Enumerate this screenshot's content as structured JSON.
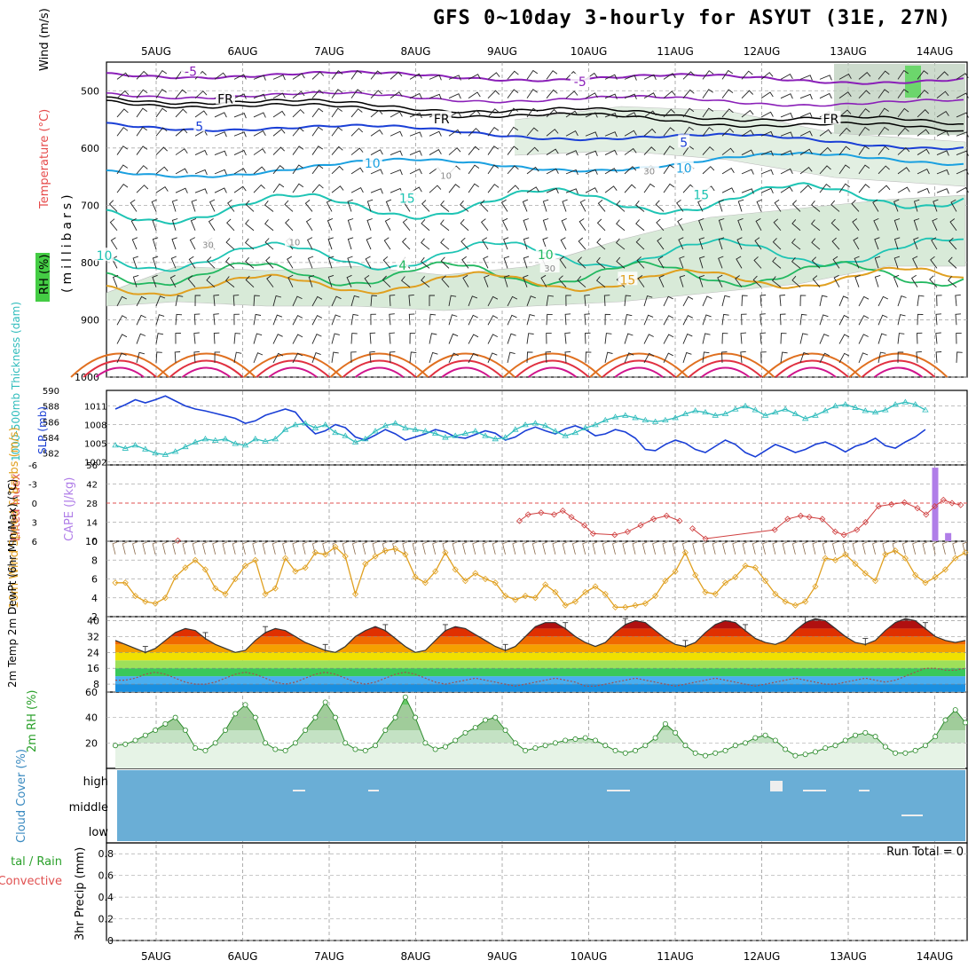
{
  "title": "GFS 0~10day 3-hourly for ASYUT (31E, 27N)",
  "dates": [
    "5AUG",
    "6AUG",
    "7AUG",
    "8AUG",
    "9AUG",
    "10AUG",
    "11AUG",
    "12AUG",
    "13AUG",
    "14AUG"
  ],
  "colors": {
    "purple": "#8a1fb8",
    "black": "#000000",
    "blue": "#1a3fd6",
    "sky": "#1aa0e0",
    "teal": "#1ec4b4",
    "green": "#22b860",
    "orange": "#e0a020",
    "dark_orange": "#e07020",
    "red": "#e03040",
    "magenta": "#d0148c",
    "cloud": "#6aaed6",
    "rh_green": "#5ac85a"
  },
  "chart_data": [
    {
      "id": "upper-air",
      "type": "contour",
      "ylabel": "(millibars)",
      "side_labels": [
        "Wind (m/s)",
        "Temperature (°C)",
        "RH (%)"
      ],
      "yticks": [
        500,
        600,
        700,
        800,
        900,
        1000
      ],
      "ylim": [
        450,
        1000
      ],
      "contour_labels": [
        {
          "text": "-5",
          "day": 1.4,
          "p": 466,
          "color": "purple"
        },
        {
          "text": "-5",
          "day": 5.9,
          "p": 484,
          "color": "purple"
        },
        {
          "text": "FR",
          "day": 1.8,
          "p": 514,
          "color": "black"
        },
        {
          "text": "FR",
          "day": 4.3,
          "p": 549,
          "color": "black"
        },
        {
          "text": "FR",
          "day": 8.8,
          "p": 549,
          "color": "black"
        },
        {
          "text": "5",
          "day": 1.5,
          "p": 562,
          "color": "blue"
        },
        {
          "text": "5",
          "day": 7.1,
          "p": 590,
          "color": "blue"
        },
        {
          "text": "10",
          "day": 3.5,
          "p": 627,
          "color": "sky"
        },
        {
          "text": "10",
          "day": 7.1,
          "p": 635,
          "color": "sky"
        },
        {
          "text": "15",
          "day": 3.9,
          "p": 688,
          "color": "teal"
        },
        {
          "text": "15",
          "day": 7.3,
          "p": 682,
          "color": "teal"
        },
        {
          "text": "10",
          "day": 0.4,
          "p": 788,
          "color": "teal"
        },
        {
          "text": "10",
          "day": 5.5,
          "p": 786,
          "color": "green"
        },
        {
          "text": "4",
          "day": 3.85,
          "p": 805,
          "color": "green"
        },
        {
          "text": "15",
          "day": 6.45,
          "p": 830,
          "color": "orange"
        },
        {
          "text": "30",
          "day": 1.6,
          "p": 767,
          "color": "gray"
        },
        {
          "text": "10",
          "day": 2.6,
          "p": 762,
          "color": "gray"
        },
        {
          "text": "10",
          "day": 4.35,
          "p": 646,
          "color": "gray"
        },
        {
          "text": "30",
          "day": 6.7,
          "p": 638,
          "color": "gray"
        },
        {
          "text": "30",
          "day": 5.55,
          "p": 808,
          "color": "gray"
        }
      ]
    },
    {
      "id": "thickness-slp",
      "type": "line",
      "ylabel_left": "1000-500mb Thickness (dam)",
      "ylabel_right": "SLP (mb)",
      "left_ticks": [
        590,
        588,
        586,
        584,
        582
      ],
      "right_ticks": [
        1011,
        1008,
        1005,
        1002
      ],
      "left_lim": [
        580.5,
        590
      ],
      "right_lim": [
        1001.5,
        1013.5
      ],
      "slp": [
        1010.5,
        1011.2,
        1012.0,
        1011.5,
        1012.0,
        1012.6,
        1011.8,
        1011.0,
        1010.5,
        1010.2,
        1009.8,
        1009.4,
        1009.0,
        1008.2,
        1008.6,
        1009.5,
        1010.0,
        1010.5,
        1010.0,
        1008.0,
        1006.5,
        1007.0,
        1008.0,
        1007.5,
        1006.0,
        1005.5,
        1006.3,
        1007.2,
        1006.5,
        1005.5,
        1006.0,
        1006.5,
        1007.2,
        1006.8,
        1006.0,
        1005.8,
        1006.4,
        1007.0,
        1006.6,
        1005.5,
        1006.0,
        1007.0,
        1007.6,
        1007.0,
        1006.5,
        1007.3,
        1007.8,
        1007.2,
        1006.2,
        1006.5,
        1007.2,
        1006.8,
        1005.8,
        1004.0,
        1003.8,
        1004.8,
        1005.5,
        1005.0,
        1004.0,
        1003.5,
        1004.5,
        1005.5,
        1004.8,
        1003.5,
        1002.8,
        1003.8,
        1004.8,
        1004.2,
        1003.5,
        1004.0,
        1004.8,
        1005.2,
        1004.5,
        1003.6,
        1004.5,
        1005.0,
        1005.8,
        1004.6,
        1004.2,
        1005.2,
        1006.0,
        1007.2
      ],
      "thickness": [
        583.0,
        582.6,
        583.0,
        582.5,
        582.0,
        581.8,
        582.2,
        582.8,
        583.4,
        583.8,
        583.6,
        583.8,
        583.2,
        583.0,
        583.8,
        583.5,
        583.8,
        585.0,
        585.6,
        585.8,
        585.2,
        585.6,
        584.6,
        584.2,
        583.4,
        583.8,
        584.8,
        585.5,
        585.8,
        585.2,
        585.0,
        584.8,
        584.5,
        584.0,
        584.2,
        584.5,
        584.8,
        584.2,
        583.8,
        584.0,
        585.0,
        585.6,
        585.8,
        585.5,
        584.8,
        584.2,
        584.6,
        585.2,
        585.6,
        586.2,
        586.6,
        586.8,
        586.5,
        586.2,
        586.0,
        586.2,
        586.5,
        587.0,
        587.4,
        587.2,
        586.8,
        587.0,
        587.6,
        588.0,
        587.5,
        586.8,
        587.2,
        587.6,
        587.0,
        586.4,
        586.8,
        587.4,
        588.0,
        588.2,
        587.8,
        587.4,
        587.2,
        587.5,
        588.2,
        588.5,
        588.2,
        587.5
      ]
    },
    {
      "id": "cape-li",
      "type": "line+bar",
      "ylabel_left": "Lifted Index",
      "ylabel_right": "CAPE (J/kg)",
      "left_ticks": [
        "-6",
        "-3",
        "0",
        "3",
        "6"
      ],
      "right_ticks": [
        56,
        42,
        28,
        14,
        0
      ],
      "cape_lim": [
        0,
        56
      ],
      "cape_bars": [
        {
          "day": 10.0,
          "value": 54
        },
        {
          "day": 10.15,
          "value": 6
        }
      ],
      "li_points": [
        {
          "day": 1.25,
          "li": 5.9
        },
        {
          "day": 5.2,
          "li": 2.8
        },
        {
          "day": 5.3,
          "li": 1.8
        },
        {
          "day": 5.45,
          "li": 1.5
        },
        {
          "day": 5.6,
          "li": 1.8
        },
        {
          "day": 5.7,
          "li": 1.2
        },
        {
          "day": 5.8,
          "li": 2.2
        },
        {
          "day": 5.95,
          "li": 3.5
        },
        {
          "day": 6.05,
          "li": 4.8
        },
        {
          "day": 6.3,
          "li": 5.0
        },
        {
          "day": 6.45,
          "li": 4.5
        },
        {
          "day": 6.6,
          "li": 3.5
        },
        {
          "day": 6.75,
          "li": 2.5
        },
        {
          "day": 6.9,
          "li": 2.0
        },
        {
          "day": 7.05,
          "li": 2.8
        },
        {
          "day": 7.2,
          "li": 4.0
        },
        {
          "day": 7.35,
          "li": 5.6
        },
        {
          "day": 8.15,
          "li": 4.2
        },
        {
          "day": 8.3,
          "li": 2.5
        },
        {
          "day": 8.45,
          "li": 2.0
        },
        {
          "day": 8.55,
          "li": 2.2
        },
        {
          "day": 8.7,
          "li": 2.5
        },
        {
          "day": 8.85,
          "li": 4.5
        },
        {
          "day": 8.95,
          "li": 5.0
        },
        {
          "day": 9.1,
          "li": 4.2
        },
        {
          "day": 9.2,
          "li": 3.0
        },
        {
          "day": 9.35,
          "li": 0.5
        },
        {
          "day": 9.5,
          "li": 0.2
        },
        {
          "day": 9.65,
          "li": -0.1
        },
        {
          "day": 9.8,
          "li": 0.8
        },
        {
          "day": 9.9,
          "li": 1.8
        },
        {
          "day": 10.0,
          "li": 0.5
        },
        {
          "day": 10.1,
          "li": -0.5
        },
        {
          "day": 10.2,
          "li": 0.0
        },
        {
          "day": 10.3,
          "li": 0.3
        }
      ]
    },
    {
      "id": "wind10m",
      "type": "line",
      "ylabel": "10m Wind Speed & Barbs (m/s)",
      "yticks": [
        10,
        8,
        6,
        4,
        2
      ],
      "ylim": [
        2,
        10
      ],
      "values": [
        5.6,
        5.6,
        4.2,
        3.6,
        3.4,
        4.0,
        6.2,
        7.2,
        8.0,
        7.0,
        5.0,
        4.4,
        6.0,
        7.4,
        8.0,
        4.4,
        5.0,
        8.2,
        6.8,
        7.2,
        8.8,
        8.6,
        9.4,
        8.4,
        4.4,
        7.6,
        8.4,
        9.0,
        9.2,
        8.6,
        6.2,
        5.6,
        6.8,
        8.8,
        7.0,
        5.8,
        6.6,
        6.0,
        5.6,
        4.2,
        3.8,
        4.2,
        4.0,
        5.4,
        4.6,
        3.2,
        3.6,
        4.6,
        5.2,
        4.4,
        3.0,
        3.0,
        3.2,
        3.4,
        4.2,
        5.8,
        6.8,
        8.8,
        6.4,
        4.6,
        4.4,
        5.6,
        6.2,
        7.4,
        7.2,
        5.8,
        4.4,
        3.6,
        3.2,
        3.6,
        5.2,
        8.2,
        8.0,
        8.6,
        7.6,
        6.6,
        5.8,
        8.6,
        9.0,
        8.2,
        6.4,
        5.6,
        6.2,
        7.0,
        8.2,
        8.8
      ]
    },
    {
      "id": "temp2m",
      "type": "area",
      "ylabel": "2m Temp 2m DewPt (6hr Min/Max) (°C)",
      "yticks": [
        40,
        32,
        24,
        16,
        8
      ],
      "ylim": [
        4,
        42
      ],
      "temp": [
        30,
        28,
        26,
        24,
        26,
        30,
        34,
        36,
        35,
        31,
        28,
        26,
        24,
        25,
        30,
        34,
        36,
        35,
        32,
        29,
        27,
        25,
        24,
        27,
        32,
        35,
        37,
        35,
        31,
        27,
        24,
        25,
        30,
        35,
        37,
        36,
        33,
        30,
        27,
        25,
        27,
        32,
        37,
        39,
        39,
        36,
        32,
        29,
        27,
        29,
        34,
        38,
        40,
        39,
        35,
        31,
        28,
        27,
        29,
        34,
        38,
        40,
        39,
        35,
        31,
        29,
        28,
        30,
        35,
        39,
        41,
        40,
        36,
        32,
        29,
        28,
        30,
        35,
        39,
        41,
        40,
        36,
        32,
        30,
        29,
        30
      ],
      "dewpt": [
        10,
        10,
        11,
        13,
        14,
        13,
        11,
        9,
        8,
        8,
        9,
        11,
        13,
        14,
        13,
        11,
        9,
        8,
        9,
        11,
        13,
        14,
        13,
        11,
        9,
        8,
        9,
        11,
        13,
        14,
        13,
        11,
        9,
        8,
        9,
        10,
        11,
        10,
        9,
        8,
        7,
        8,
        9,
        10,
        11,
        10,
        9,
        7,
        7,
        8,
        9,
        10,
        11,
        10,
        9,
        8,
        7,
        8,
        9,
        10,
        11,
        10,
        9,
        8,
        7,
        8,
        9,
        10,
        11,
        10,
        9,
        8,
        8,
        9,
        10,
        11,
        10,
        9,
        10,
        12,
        14,
        16,
        16,
        15,
        15,
        16
      ]
    },
    {
      "id": "rh2m",
      "type": "area",
      "ylabel": "2m RH (%)",
      "yticks": [
        60,
        40,
        20
      ],
      "ylim": [
        0,
        60
      ],
      "values": [
        18,
        19,
        22,
        26,
        30,
        35,
        40,
        30,
        16,
        14,
        20,
        30,
        43,
        50,
        40,
        20,
        15,
        14,
        20,
        30,
        40,
        52,
        40,
        20,
        15,
        14,
        18,
        30,
        40,
        56,
        40,
        20,
        15,
        17,
        22,
        28,
        32,
        38,
        40,
        30,
        20,
        14,
        16,
        18,
        20,
        22,
        23,
        24,
        22,
        18,
        14,
        12,
        14,
        18,
        24,
        35,
        28,
        18,
        12,
        10,
        12,
        14,
        18,
        20,
        24,
        26,
        22,
        15,
        10,
        11,
        13,
        16,
        18,
        22,
        26,
        28,
        25,
        17,
        12,
        12,
        14,
        18,
        25,
        38,
        46,
        36
      ]
    },
    {
      "id": "cloud",
      "type": "heatmap",
      "ylabel": "Cloud Cover (%)",
      "levels": [
        "high",
        "middle",
        "low"
      ]
    },
    {
      "id": "precip",
      "type": "bar",
      "ylabel_left": "Total / Rain Convective",
      "ylabel": "3hr Precip (mm)",
      "yticks": [
        "0.8",
        "0.6",
        "0.4",
        "0.2",
        "0"
      ],
      "ylim": [
        0,
        0.9
      ],
      "run_total": "Run Total = 0"
    }
  ]
}
